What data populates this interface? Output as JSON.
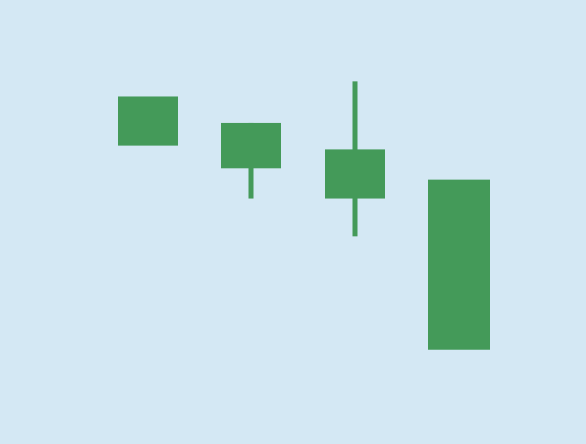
{
  "chart_data": {
    "type": "candlestick",
    "title": "",
    "xlabel": "",
    "ylabel": "",
    "grid": false,
    "colors": {
      "background": "#d4e8f4",
      "candle": "#449a59"
    },
    "ylim": [
      0,
      100
    ],
    "candles": [
      {
        "high": 84,
        "low": 71,
        "body_top": 84,
        "body_bottom": 71
      },
      {
        "high": 77,
        "low": 57,
        "body_top": 77,
        "body_bottom": 65
      },
      {
        "high": 88,
        "low": 47,
        "body_top": 70,
        "body_bottom": 57
      },
      {
        "high": 62,
        "low": 17,
        "body_top": 62,
        "body_bottom": 17
      }
    ]
  }
}
